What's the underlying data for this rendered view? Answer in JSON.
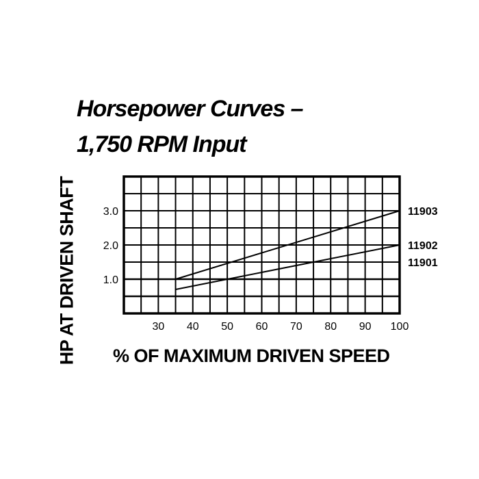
{
  "chart_data": {
    "type": "line",
    "title": "Horsepower Curves –",
    "subtitle": "1,750 RPM Input",
    "xlabel": "% OF MAXIMUM DRIVEN SPEED",
    "ylabel": "HP AT DRIVEN SHAFT",
    "xlim": [
      20,
      100
    ],
    "ylim": [
      0,
      4
    ],
    "grid": true,
    "x_ticks": [
      "30",
      "40",
      "50",
      "60",
      "70",
      "80",
      "90",
      "100"
    ],
    "y_ticks": [
      "1.0",
      "2.0",
      "3.0"
    ],
    "series": [
      {
        "name": "11903",
        "x": [
          35,
          100
        ],
        "y": [
          1.0,
          3.0
        ]
      },
      {
        "name": "11902",
        "x": [
          35,
          100
        ],
        "y": [
          0.7,
          2.0
        ]
      }
    ],
    "annotations": [
      {
        "text": "11903",
        "y": 3.0
      },
      {
        "text": "11902",
        "y": 2.0
      },
      {
        "text": "11901",
        "y": 1.5
      }
    ]
  }
}
